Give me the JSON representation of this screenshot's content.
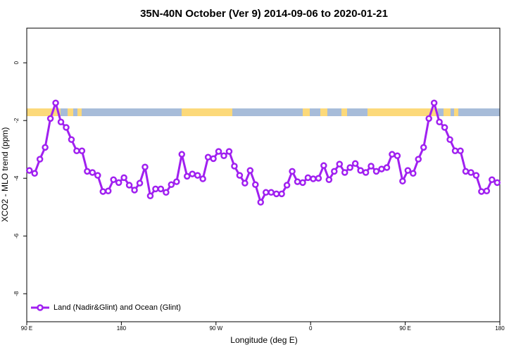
{
  "chart_data": {
    "type": "line",
    "title": "35N-40N October (Ver 9)   2014-09-06 to 2020-01-21",
    "xlabel": "Longitude (deg E)",
    "ylabel": "XCO2 - MLO trend (ppm)",
    "x": [
      92.5,
      97.5,
      102.5,
      107.5,
      112.5,
      117.5,
      122.5,
      127.5,
      132.5,
      137.5,
      142.5,
      147.5,
      152.5,
      157.5,
      162.5,
      167.5,
      172.5,
      177.5,
      182.5,
      187.5,
      192.5,
      197.5,
      202.5,
      207.5,
      212.5,
      217.5,
      222.5,
      227.5,
      232.5,
      237.5,
      242.5,
      247.5,
      252.5,
      257.5,
      262.5,
      267.5,
      272.5,
      277.5,
      282.5,
      287.5,
      292.5,
      297.5,
      302.5,
      307.5,
      312.5,
      317.5,
      322.5,
      327.5,
      332.5,
      337.5,
      342.5,
      347.5,
      352.5,
      357.5,
      362.5,
      367.5,
      372.5,
      377.5,
      382.5,
      387.5,
      392.5,
      397.5,
      402.5,
      407.5,
      412.5,
      417.5,
      422.5,
      427.5,
      432.5,
      437.5,
      442.5,
      447.5,
      452.5,
      457.5,
      462.5,
      467.5,
      472.5,
      477.5,
      482.5,
      487.5,
      492.5,
      497.5,
      502.5,
      507.5,
      512.5,
      517.5,
      522.5,
      527.5,
      532.5,
      537.5
    ],
    "series": [
      {
        "name": "Land (Nadir&Glint) and Ocean (Glint)",
        "color": "#a020f0",
        "values": [
          -3.73,
          -3.83,
          -3.34,
          -2.93,
          -1.93,
          -1.39,
          -2.05,
          -2.24,
          -2.66,
          -3.05,
          -3.05,
          -3.76,
          -3.8,
          -3.9,
          -4.46,
          -4.44,
          -4.05,
          -4.15,
          -3.98,
          -4.24,
          -4.41,
          -4.17,
          -3.61,
          -4.61,
          -4.37,
          -4.37,
          -4.49,
          -4.22,
          -4.12,
          -3.17,
          -3.93,
          -3.85,
          -3.9,
          -4.02,
          -3.27,
          -3.32,
          -3.07,
          -3.22,
          -3.07,
          -3.58,
          -3.9,
          -4.17,
          -3.73,
          -4.22,
          -4.83,
          -4.49,
          -4.49,
          -4.54,
          -4.54,
          -4.24,
          -3.76,
          -4.12,
          -4.15,
          -3.98,
          -4.02,
          -4.0,
          -3.56,
          -4.05,
          -3.76,
          -3.51,
          -3.8,
          -3.63,
          -3.49,
          -3.73,
          -3.8,
          -3.58,
          -3.76,
          -3.68,
          -3.63,
          -3.17,
          -3.22,
          -4.1,
          -3.73,
          -3.83,
          -3.34,
          -2.93,
          -1.93,
          -1.39,
          -2.05,
          -2.24,
          -2.66,
          -3.05,
          -3.05,
          -3.76,
          -3.8,
          -3.9,
          -4.46,
          -4.44,
          -4.05,
          -4.15
        ]
      }
    ],
    "xlim": [
      90,
      540
    ],
    "xticks": [
      {
        "value": 90,
        "label": "90 E"
      },
      180,
      {
        "value": 270,
        "label": "90 W"
      },
      {
        "value": 360,
        "label": "0"
      },
      {
        "value": 450,
        "label": "90 E"
      },
      {
        "value": 540,
        "label": "180"
      }
    ],
    "ylim": [
      -8.97,
      1.2
    ],
    "yticks": [
      0,
      -2,
      -4,
      -6,
      -8
    ],
    "legend": "bottom-left"
  }
}
